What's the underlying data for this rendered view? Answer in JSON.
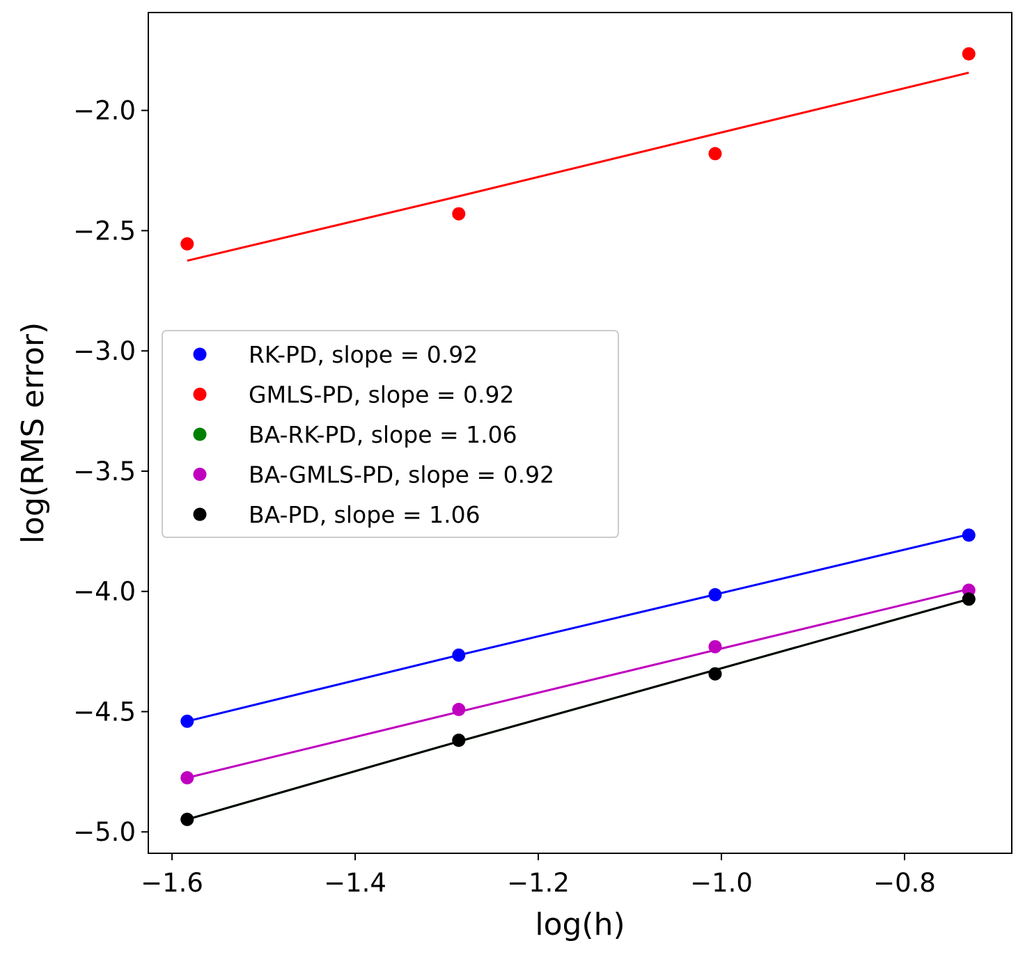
{
  "chart_data": {
    "type": "scatter",
    "xlabel": "log(h)",
    "ylabel": "log(RMS error)",
    "xlim": [
      -1.6259,
      -0.6829
    ],
    "ylim": [
      -5.089,
      -1.593
    ],
    "xticks": [
      -1.6,
      -1.4,
      -1.2,
      -1.0,
      -0.8
    ],
    "yticks": [
      -2.0,
      -2.5,
      -3.0,
      -3.5,
      -4.0,
      -4.5,
      -5.0
    ],
    "xtick_labels": [
      "−1.6",
      "−1.4",
      "−1.2",
      "−1.0",
      "−0.8"
    ],
    "ytick_labels": [
      "−2.0",
      "−2.5",
      "−3.0",
      "−3.5",
      "−4.0",
      "−4.5",
      "−5.0"
    ],
    "grid": false,
    "legend_position": "center-left",
    "x": [
      -1.5835,
      -1.2869,
      -1.0069,
      -0.7298
    ],
    "series": [
      {
        "name": "RK-PD, slope = 0.92",
        "color": "#0000ff",
        "values": [
          -4.54,
          -4.265,
          -4.014,
          -3.766
        ],
        "fit": [
          -4.54,
          -4.265,
          -4.013,
          -3.763
        ]
      },
      {
        "name": "GMLS-PD, slope = 0.92",
        "color": "#ff0000",
        "values": [
          -2.555,
          -2.43,
          -2.18,
          -1.765
        ],
        "fit": [
          -2.625,
          -2.357,
          -2.098,
          -1.843
        ]
      },
      {
        "name": "BA-RK-PD, slope = 1.06",
        "color": "#008000",
        "values": [
          -4.948,
          -4.619,
          -4.343,
          -4.032
        ],
        "fit": [
          -4.948,
          -4.624,
          -4.327,
          -4.032
        ]
      },
      {
        "name": "BA-GMLS-PD, slope = 0.92",
        "color": "#bf00bf",
        "values": [
          -4.775,
          -4.491,
          -4.23,
          -3.995
        ],
        "fit": [
          -4.775,
          -4.501,
          -4.244,
          -3.99
        ]
      },
      {
        "name": "BA-PD, slope = 1.06",
        "color": "#000000",
        "values": [
          -4.948,
          -4.619,
          -4.343,
          -4.032
        ],
        "fit": [
          -4.948,
          -4.624,
          -4.327,
          -4.032
        ]
      }
    ]
  }
}
